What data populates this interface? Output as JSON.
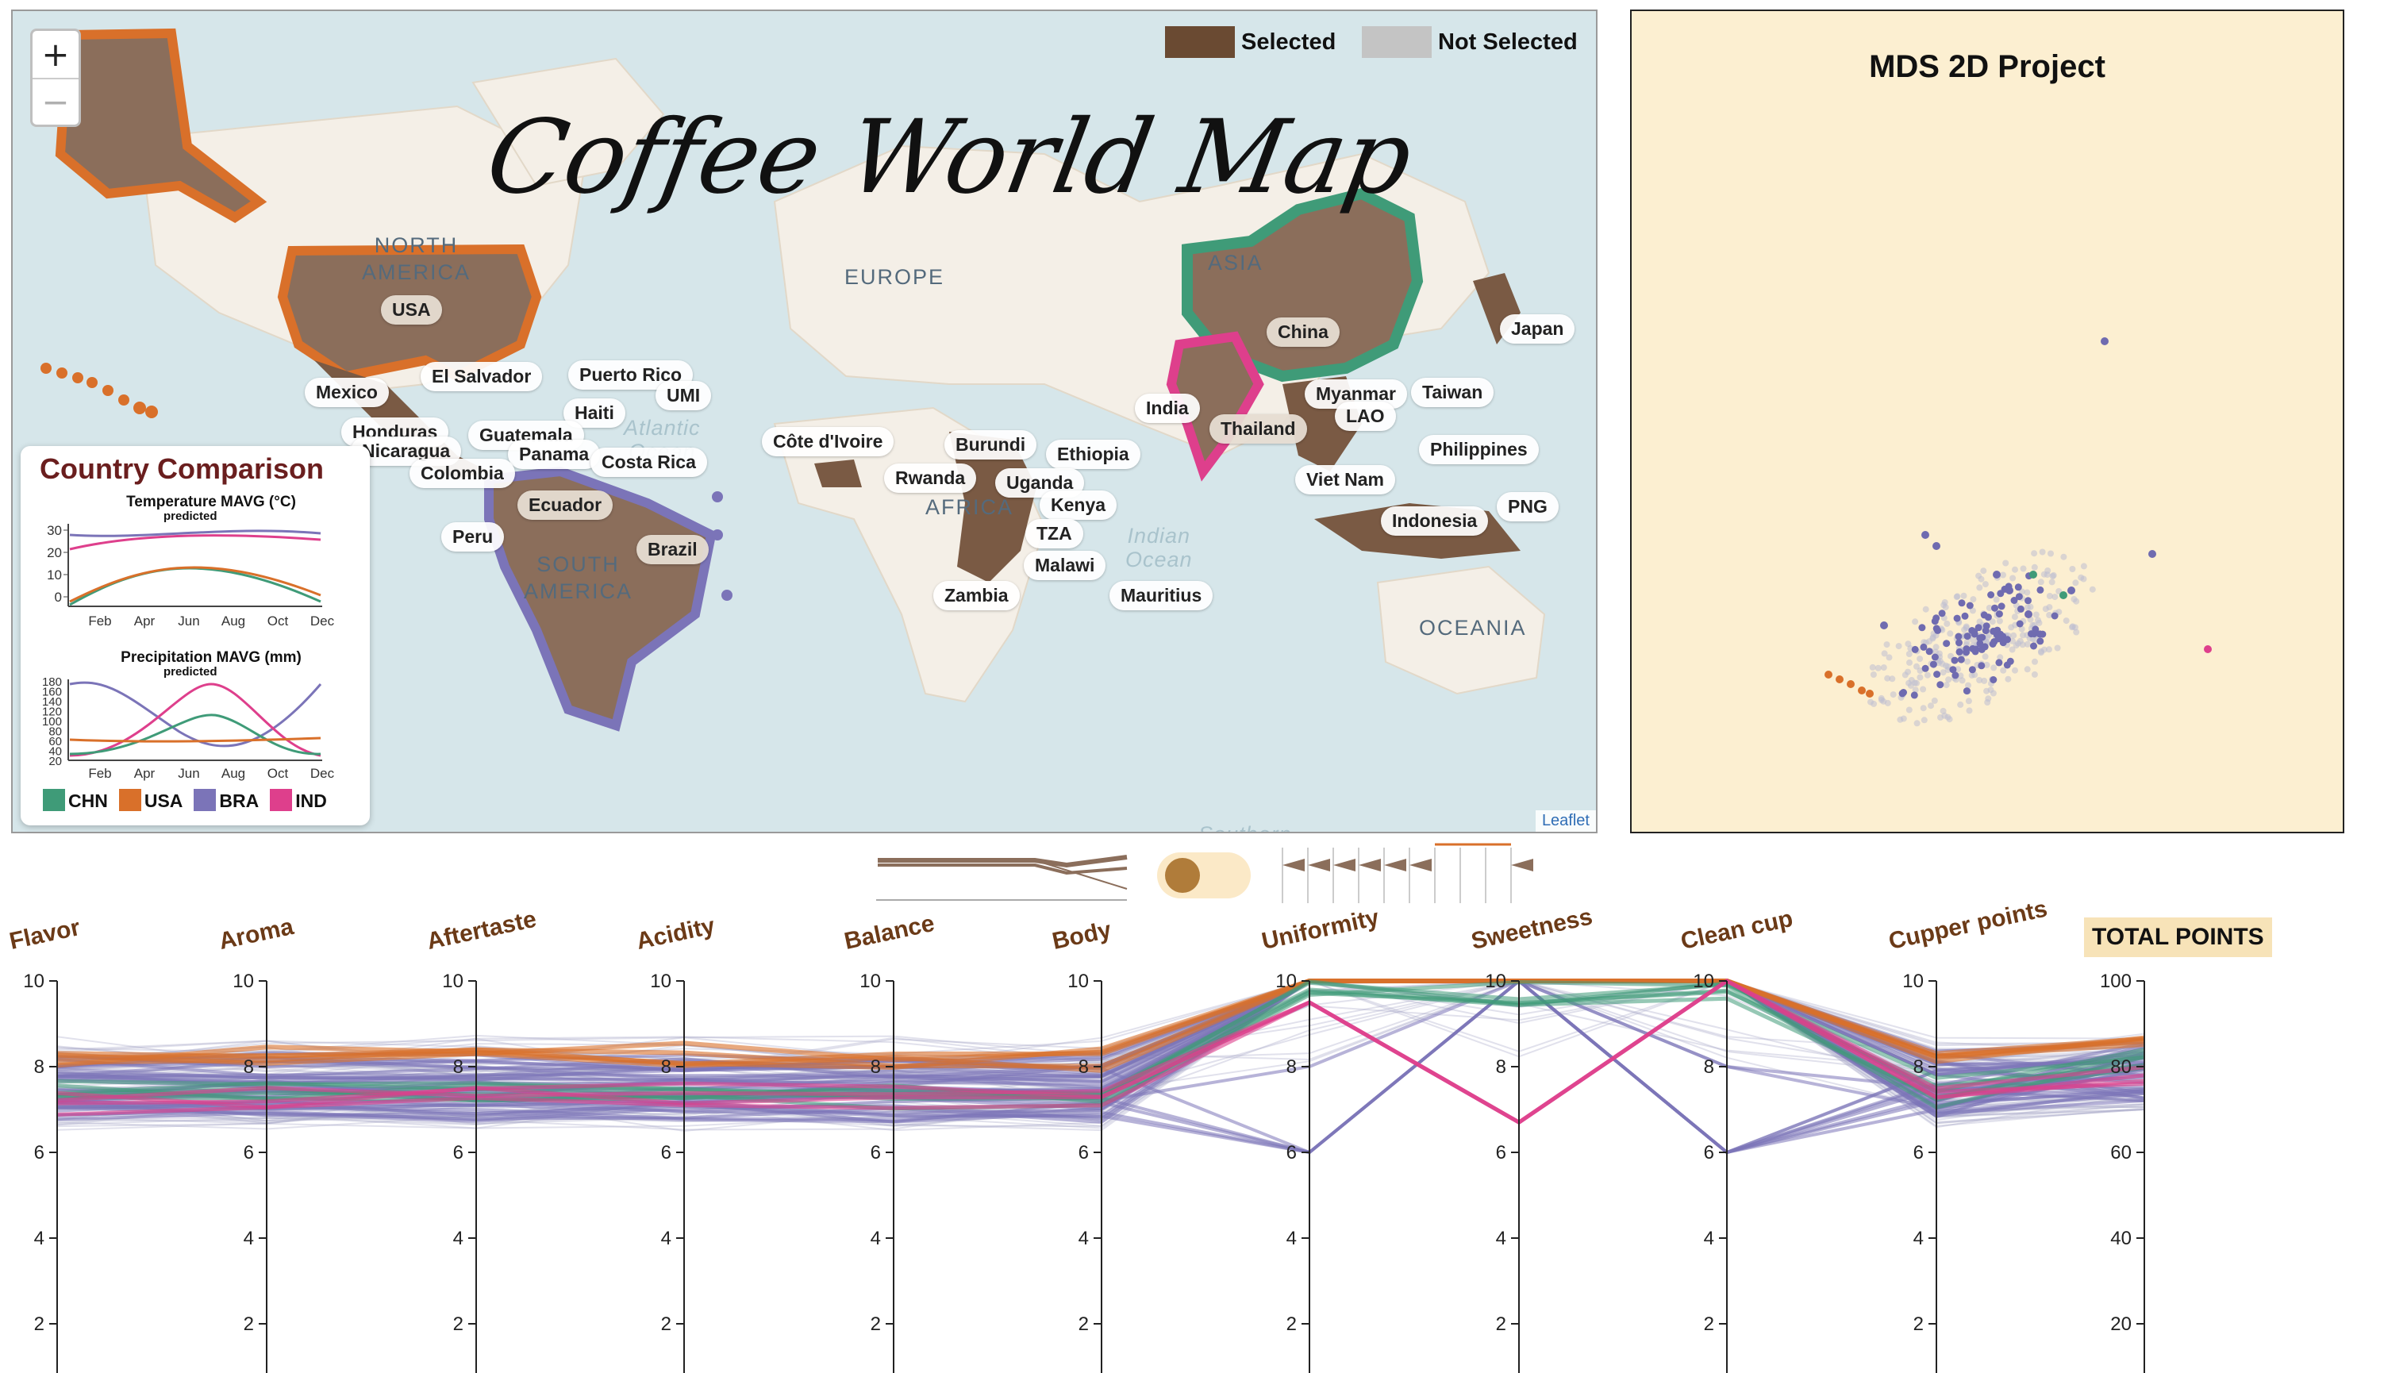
{
  "map": {
    "title": "Coffee World Map",
    "zoom_in": "+",
    "zoom_out": "−",
    "legend": {
      "selected": "Selected",
      "not_selected": "Not Selected",
      "selected_color": "#6a4a32",
      "not_selected_color": "#c4c4c4"
    },
    "attribution": "Leaflet",
    "regions": {
      "north_america": "NORTH\nAMERICA",
      "south_america": "SOUTH\nAMERICA",
      "europe": "EUROPE",
      "asia": "ASIA",
      "africa": "AFRICA",
      "oceania": "OCEANIA"
    },
    "oceans": {
      "atlantic": "Atlantic\nOcean",
      "indian": "Indian\nOcean",
      "southern": "Southern"
    },
    "countries": [
      "USA",
      "Mexico",
      "El Salvador",
      "Puerto Rico",
      "UMI",
      "Haiti",
      "Honduras",
      "Guatemala",
      "Nicaragua",
      "Panama",
      "Costa Rica",
      "Colombia",
      "Ecuador",
      "Peru",
      "Brazil",
      "Côte d'Ivoire",
      "Burundi",
      "Ethiopia",
      "Rwanda",
      "Uganda",
      "Kenya",
      "TZA",
      "Malawi",
      "Zambia",
      "Mauritius",
      "China",
      "Japan",
      "India",
      "Myanmar",
      "Taiwan",
      "LAO",
      "Thailand",
      "Philippines",
      "Viet Nam",
      "Indonesia",
      "PNG"
    ]
  },
  "comparison": {
    "title": "Country Comparison",
    "temp_title": "Temperature MAVG (°C)",
    "temp_note": "predicted",
    "temp_ticks": [
      "30",
      "20",
      "10",
      "0"
    ],
    "precip_title": "Precipitation MAVG (mm)",
    "precip_note": "predicted",
    "precip_ticks": [
      "180",
      "160",
      "140",
      "120",
      "100",
      "80",
      "60",
      "40",
      "20"
    ],
    "months": [
      "Feb",
      "Apr",
      "Jun",
      "Aug",
      "Oct",
      "Dec"
    ],
    "legend": [
      {
        "code": "CHN",
        "color": "#3f9b78"
      },
      {
        "code": "USA",
        "color": "#d9702a"
      },
      {
        "code": "BRA",
        "color": "#7b74b8"
      },
      {
        "code": "IND",
        "color": "#de3f8c"
      }
    ]
  },
  "mds": {
    "title": "MDS 2D Project"
  },
  "parallel": {
    "axes": [
      "Flavor",
      "Aroma",
      "Aftertaste",
      "Acidity",
      "Balance",
      "Body",
      "Uniformity",
      "Sweetness",
      "Clean cup",
      "Cupper points"
    ],
    "axis_ticks": [
      "10",
      "8",
      "6",
      "4",
      "2"
    ],
    "total_title": "TOTAL POINTS",
    "total_ticks": [
      "100",
      "80",
      "60",
      "40",
      "20"
    ]
  }
}
